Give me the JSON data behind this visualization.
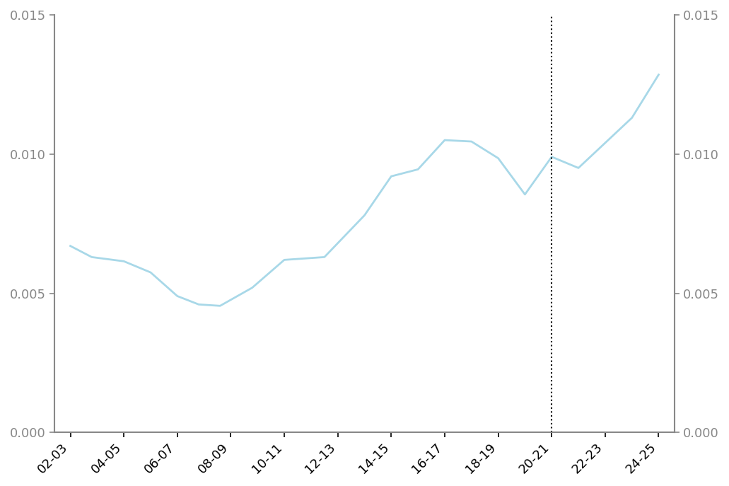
{
  "x_labels": [
    "02-03",
    "04-05",
    "06-07",
    "08-09",
    "10-11",
    "12-13",
    "14-15",
    "16-17",
    "18-19",
    "20-21",
    "22-23",
    "24-25"
  ],
  "x_values": [
    0,
    1,
    2,
    3,
    4,
    5,
    6,
    7,
    8,
    9,
    10,
    11
  ],
  "x_data": [
    0,
    0.4,
    1,
    1.5,
    2,
    2.4,
    2.8,
    3.4,
    4,
    4.75,
    5.5,
    6,
    6.5,
    7,
    7.5,
    8,
    8.5,
    9,
    9.5,
    10,
    10.5,
    11
  ],
  "y_data": [
    0.0067,
    0.0063,
    0.00615,
    0.00575,
    0.0049,
    0.0046,
    0.00455,
    0.0052,
    0.0062,
    0.0063,
    0.0078,
    0.0092,
    0.00945,
    0.0105,
    0.01045,
    0.00985,
    0.00855,
    0.0099,
    0.0095,
    0.0104,
    0.0113,
    0.01285
  ],
  "line_color": "#a8d8e8",
  "line_width": 2.0,
  "ylim": [
    0.0,
    0.015
  ],
  "yticks": [
    0.0,
    0.005,
    0.01,
    0.015
  ],
  "vline_x": 9,
  "background_color": "#ffffff",
  "spine_color": "#888888",
  "tick_color": "#888888",
  "label_fontsize": 14,
  "tick_fontsize": 13
}
